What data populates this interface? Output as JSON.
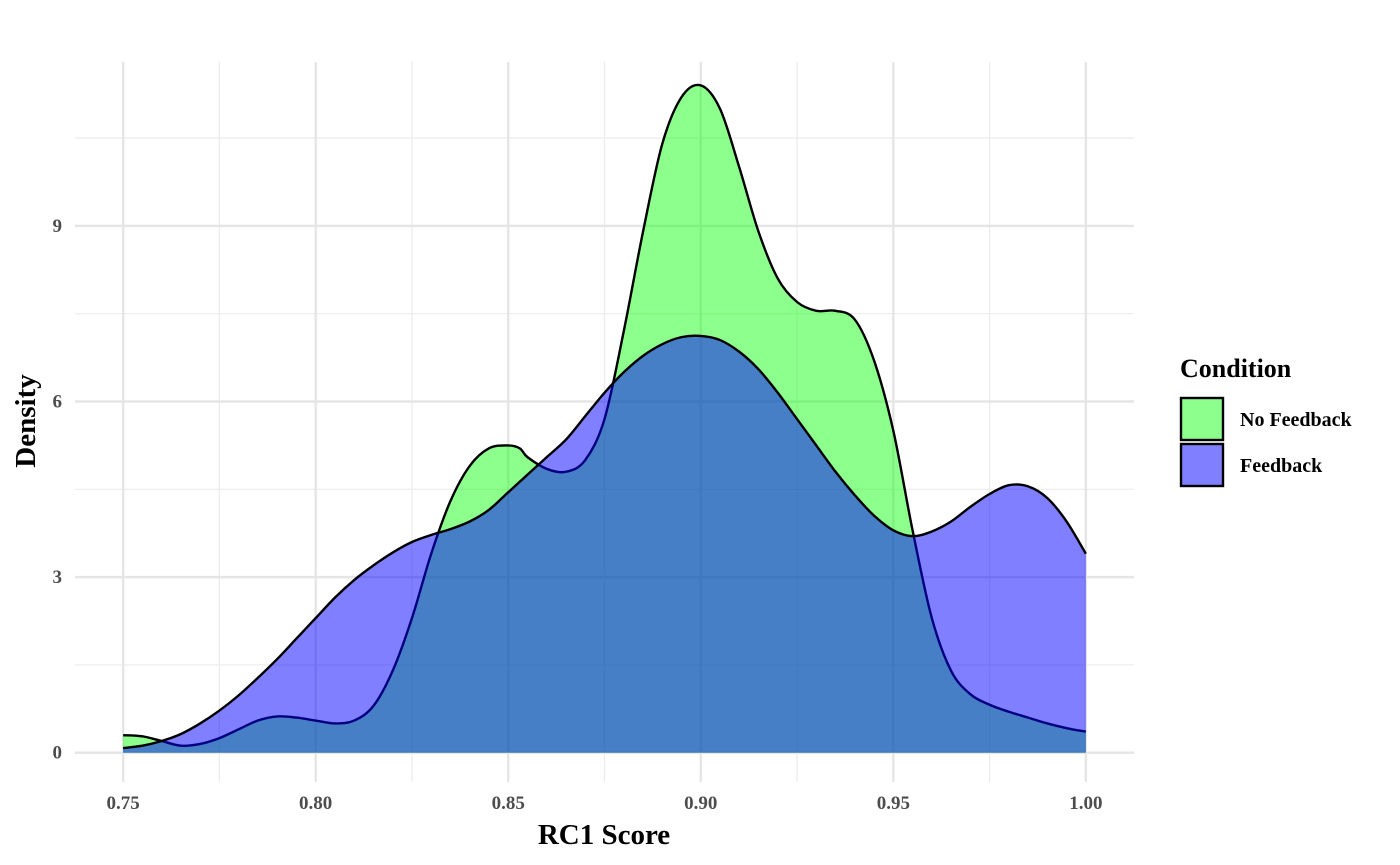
{
  "chart_data": {
    "type": "area",
    "subtype": "density",
    "xlabel": "RC1 Score",
    "ylabel": "Density",
    "xlim": [
      0.7375,
      1.0125
    ],
    "ylim": [
      -0.5,
      11.8
    ],
    "x_ticks": [
      0.75,
      0.8,
      0.85,
      0.9,
      0.95,
      1.0
    ],
    "x_tick_labels": [
      "0.75",
      "0.80",
      "0.85",
      "0.90",
      "0.95",
      "1.00"
    ],
    "y_ticks": [
      0,
      3,
      6,
      9
    ],
    "y_tick_labels": [
      "0",
      "3",
      "6",
      "9"
    ],
    "grid": true,
    "legend": {
      "title": "Condition",
      "position": "right",
      "entries": [
        "No Feedback",
        "Feedback"
      ]
    },
    "series": [
      {
        "name": "No Feedback",
        "color": "#00ff00",
        "alpha": 0.45,
        "x": [
          0.75,
          0.755,
          0.76,
          0.765,
          0.77,
          0.775,
          0.78,
          0.785,
          0.79,
          0.795,
          0.8,
          0.805,
          0.81,
          0.815,
          0.82,
          0.825,
          0.83,
          0.835,
          0.84,
          0.845,
          0.85,
          0.853,
          0.855,
          0.86,
          0.865,
          0.87,
          0.875,
          0.88,
          0.885,
          0.89,
          0.895,
          0.9,
          0.905,
          0.91,
          0.915,
          0.92,
          0.925,
          0.93,
          0.935,
          0.94,
          0.945,
          0.95,
          0.955,
          0.96,
          0.965,
          0.97,
          0.975,
          0.98,
          0.985,
          0.99,
          0.995,
          1.0
        ],
        "y": [
          0.3,
          0.28,
          0.2,
          0.12,
          0.15,
          0.25,
          0.4,
          0.55,
          0.62,
          0.6,
          0.55,
          0.5,
          0.55,
          0.8,
          1.4,
          2.3,
          3.4,
          4.3,
          4.9,
          5.2,
          5.25,
          5.2,
          5.05,
          4.85,
          4.8,
          5.0,
          5.7,
          7.2,
          8.9,
          10.4,
          11.2,
          11.4,
          11.0,
          10.0,
          8.9,
          8.1,
          7.7,
          7.55,
          7.55,
          7.4,
          6.7,
          5.5,
          3.8,
          2.3,
          1.4,
          1.0,
          0.82,
          0.7,
          0.6,
          0.5,
          0.42,
          0.36
        ]
      },
      {
        "name": "Feedback",
        "color": "#0000ff",
        "alpha": 0.5,
        "x": [
          0.75,
          0.755,
          0.76,
          0.765,
          0.77,
          0.775,
          0.78,
          0.785,
          0.79,
          0.795,
          0.8,
          0.805,
          0.81,
          0.815,
          0.82,
          0.825,
          0.83,
          0.835,
          0.84,
          0.845,
          0.85,
          0.855,
          0.86,
          0.865,
          0.87,
          0.875,
          0.88,
          0.885,
          0.89,
          0.895,
          0.9,
          0.905,
          0.91,
          0.915,
          0.92,
          0.925,
          0.93,
          0.935,
          0.94,
          0.945,
          0.95,
          0.955,
          0.96,
          0.965,
          0.97,
          0.975,
          0.98,
          0.985,
          0.99,
          0.995,
          1.0
        ],
        "y": [
          0.08,
          0.12,
          0.2,
          0.32,
          0.5,
          0.72,
          0.98,
          1.28,
          1.6,
          1.95,
          2.3,
          2.65,
          2.95,
          3.2,
          3.42,
          3.6,
          3.72,
          3.82,
          3.95,
          4.15,
          4.45,
          4.75,
          5.05,
          5.35,
          5.75,
          6.15,
          6.5,
          6.78,
          6.98,
          7.1,
          7.12,
          7.05,
          6.85,
          6.55,
          6.15,
          5.7,
          5.25,
          4.8,
          4.4,
          4.05,
          3.8,
          3.7,
          3.78,
          3.95,
          4.2,
          4.42,
          4.57,
          4.55,
          4.35,
          3.95,
          3.4
        ]
      }
    ]
  }
}
